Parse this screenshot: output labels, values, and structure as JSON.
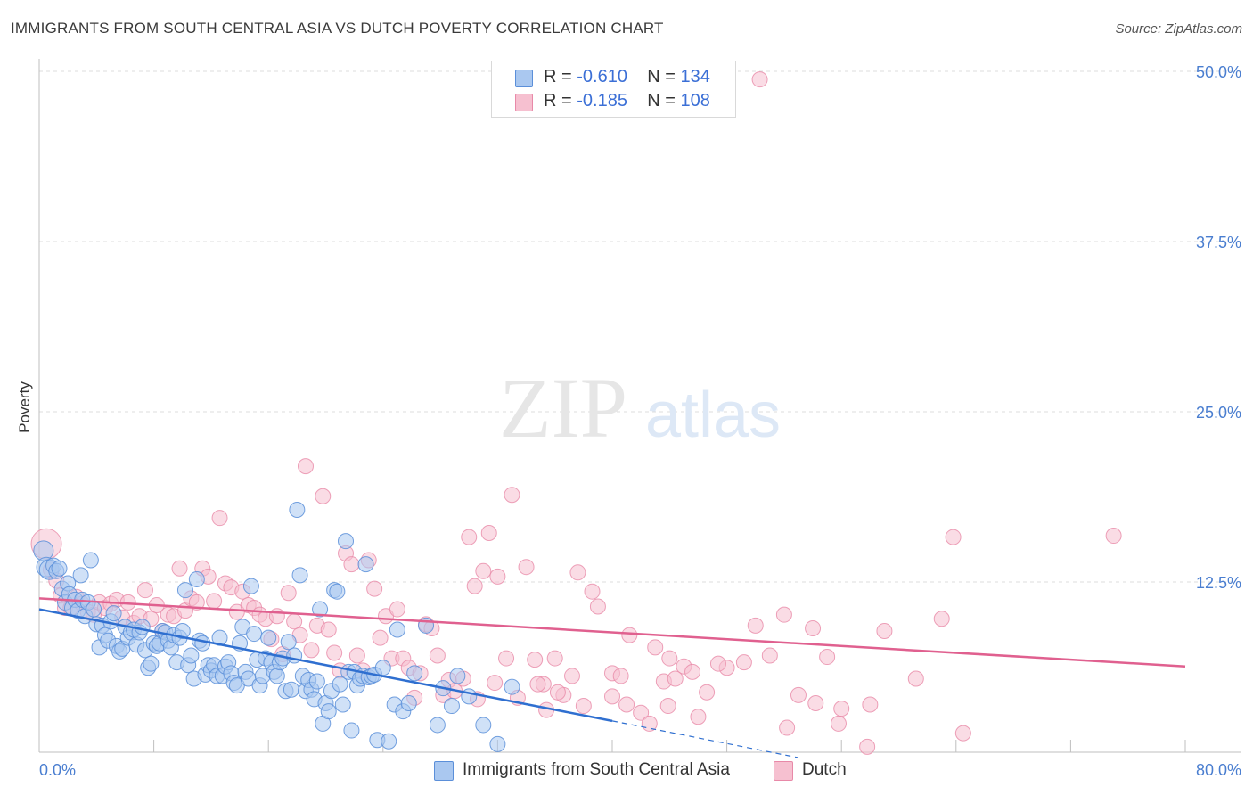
{
  "title": "IMMIGRANTS FROM SOUTH CENTRAL ASIA VS DUTCH POVERTY CORRELATION CHART",
  "source": "Source: ZipAtlas.com",
  "watermark": {
    "zip": "ZIP",
    "atlas": "atlas"
  },
  "legend": {
    "series1": {
      "r_label": "R =",
      "r_value": "-0.610",
      "n_label": "N =",
      "n_value": "134"
    },
    "series2": {
      "r_label": "R =",
      "r_value": "-0.185",
      "n_label": "N =",
      "n_value": "108"
    }
  },
  "colors": {
    "blue_fill": "#aac8f0",
    "blue_stroke": "#5b8fd9",
    "blue_line": "#2f6fd0",
    "pink_fill": "#f6c0d0",
    "pink_stroke": "#e889a8",
    "pink_line": "#e0608f",
    "tick_text": "#4a7ed0"
  },
  "chart_data": {
    "type": "scatter",
    "title": "IMMIGRANTS FROM SOUTH CENTRAL ASIA VS DUTCH POVERTY CORRELATION CHART",
    "xlabel": "",
    "ylabel": "Poverty",
    "xlim": [
      0,
      80
    ],
    "ylim": [
      0,
      50
    ],
    "x_tick_labels": [
      "0.0%",
      "80.0%"
    ],
    "y_ticks": [
      12.5,
      25.0,
      37.5,
      50.0
    ],
    "y_tick_labels": [
      "12.5%",
      "25.0%",
      "37.5%",
      "50.0%"
    ],
    "grid": "horizontal dashed",
    "legend_position": "top-center",
    "series": [
      {
        "name": "Immigrants from South Central Asia",
        "trend": {
          "x": [
            0,
            40
          ],
          "y": [
            10.5,
            2.3
          ],
          "dashed_to": [
            53,
            -0.4
          ]
        },
        "points": [
          [
            0.3,
            14.8
          ],
          [
            0.5,
            13.6
          ],
          [
            0.7,
            13.4
          ],
          [
            1.0,
            13.7
          ],
          [
            1.2,
            13.3
          ],
          [
            1.4,
            13.5
          ],
          [
            1.6,
            12.0
          ],
          [
            1.8,
            11.0
          ],
          [
            2.0,
            12.4
          ],
          [
            2.1,
            11.6
          ],
          [
            2.3,
            10.6
          ],
          [
            2.5,
            11.2
          ],
          [
            2.7,
            10.4
          ],
          [
            2.9,
            13.0
          ],
          [
            3.0,
            11.2
          ],
          [
            3.2,
            10.0
          ],
          [
            3.4,
            11.0
          ],
          [
            3.6,
            14.1
          ],
          [
            3.8,
            10.5
          ],
          [
            4.0,
            9.4
          ],
          [
            4.2,
            7.7
          ],
          [
            4.4,
            9.3
          ],
          [
            4.6,
            8.6
          ],
          [
            4.8,
            8.2
          ],
          [
            5.0,
            9.6
          ],
          [
            5.2,
            10.2
          ],
          [
            5.4,
            7.8
          ],
          [
            5.6,
            7.4
          ],
          [
            5.8,
            7.6
          ],
          [
            6.0,
            9.2
          ],
          [
            6.2,
            8.4
          ],
          [
            6.4,
            8.8
          ],
          [
            6.6,
            9.0
          ],
          [
            6.8,
            7.9
          ],
          [
            7.0,
            8.8
          ],
          [
            7.2,
            9.2
          ],
          [
            7.4,
            7.5
          ],
          [
            7.6,
            6.2
          ],
          [
            7.8,
            6.5
          ],
          [
            8.0,
            8.0
          ],
          [
            8.2,
            7.8
          ],
          [
            8.4,
            8.0
          ],
          [
            8.6,
            8.9
          ],
          [
            8.8,
            8.8
          ],
          [
            9.0,
            8.2
          ],
          [
            9.2,
            7.7
          ],
          [
            9.4,
            8.6
          ],
          [
            9.6,
            6.6
          ],
          [
            9.8,
            8.4
          ],
          [
            10.0,
            8.9
          ],
          [
            10.2,
            11.9
          ],
          [
            10.4,
            6.4
          ],
          [
            10.6,
            7.1
          ],
          [
            10.8,
            5.4
          ],
          [
            11.0,
            12.7
          ],
          [
            11.2,
            8.2
          ],
          [
            11.4,
            8.0
          ],
          [
            11.6,
            5.7
          ],
          [
            11.8,
            6.4
          ],
          [
            12.0,
            6.0
          ],
          [
            12.2,
            6.4
          ],
          [
            12.4,
            5.6
          ],
          [
            12.6,
            8.4
          ],
          [
            12.8,
            5.6
          ],
          [
            13.0,
            6.3
          ],
          [
            13.2,
            6.6
          ],
          [
            13.4,
            5.8
          ],
          [
            13.6,
            5.1
          ],
          [
            13.8,
            4.9
          ],
          [
            14.0,
            8.0
          ],
          [
            14.2,
            9.2
          ],
          [
            14.4,
            5.9
          ],
          [
            14.6,
            5.4
          ],
          [
            14.8,
            12.2
          ],
          [
            15.0,
            8.7
          ],
          [
            15.2,
            6.8
          ],
          [
            15.4,
            4.9
          ],
          [
            15.6,
            5.6
          ],
          [
            15.8,
            6.9
          ],
          [
            16.0,
            8.4
          ],
          [
            16.2,
            6.6
          ],
          [
            16.4,
            5.9
          ],
          [
            16.6,
            5.6
          ],
          [
            16.8,
            6.6
          ],
          [
            17.0,
            6.9
          ],
          [
            17.2,
            4.5
          ],
          [
            17.4,
            8.1
          ],
          [
            17.6,
            4.6
          ],
          [
            17.8,
            7.1
          ],
          [
            18.0,
            17.8
          ],
          [
            18.2,
            13.0
          ],
          [
            18.4,
            5.6
          ],
          [
            18.6,
            4.5
          ],
          [
            18.8,
            5.3
          ],
          [
            19.0,
            4.6
          ],
          [
            19.2,
            3.9
          ],
          [
            19.4,
            5.2
          ],
          [
            19.6,
            10.5
          ],
          [
            19.8,
            2.1
          ],
          [
            20.0,
            3.6
          ],
          [
            20.2,
            3.0
          ],
          [
            20.4,
            4.5
          ],
          [
            20.6,
            11.9
          ],
          [
            20.8,
            11.8
          ],
          [
            21.0,
            5.0
          ],
          [
            21.2,
            3.5
          ],
          [
            21.4,
            15.5
          ],
          [
            21.6,
            5.9
          ],
          [
            21.8,
            1.6
          ],
          [
            22.0,
            5.9
          ],
          [
            22.2,
            4.9
          ],
          [
            22.4,
            5.4
          ],
          [
            22.6,
            5.6
          ],
          [
            22.8,
            13.8
          ],
          [
            23.0,
            5.5
          ],
          [
            23.2,
            5.6
          ],
          [
            23.4,
            5.7
          ],
          [
            23.6,
            0.9
          ],
          [
            24.0,
            6.2
          ],
          [
            24.4,
            0.8
          ],
          [
            24.8,
            3.5
          ],
          [
            25.0,
            9.0
          ],
          [
            25.4,
            3.0
          ],
          [
            25.8,
            3.6
          ],
          [
            26.2,
            5.8
          ],
          [
            27.0,
            9.3
          ],
          [
            27.8,
            2.0
          ],
          [
            28.2,
            4.7
          ],
          [
            28.8,
            3.4
          ],
          [
            29.2,
            5.6
          ],
          [
            30.0,
            4.1
          ],
          [
            31.0,
            2.0
          ],
          [
            32.0,
            0.6
          ],
          [
            33.0,
            4.8
          ]
        ]
      },
      {
        "name": "Dutch",
        "trend": {
          "x": [
            0,
            80
          ],
          "y": [
            11.3,
            6.3
          ]
        },
        "points": [
          [
            0.5,
            15.3
          ],
          [
            0.8,
            13.4
          ],
          [
            1.2,
            12.6
          ],
          [
            1.5,
            11.5
          ],
          [
            1.8,
            10.6
          ],
          [
            2.2,
            10.6
          ],
          [
            2.6,
            11.4
          ],
          [
            3.0,
            10.9
          ],
          [
            3.4,
            10.3
          ],
          [
            3.8,
            10.1
          ],
          [
            4.2,
            11.0
          ],
          [
            4.6,
            10.6
          ],
          [
            5.0,
            10.9
          ],
          [
            5.4,
            11.2
          ],
          [
            5.8,
            9.9
          ],
          [
            6.2,
            11.0
          ],
          [
            6.6,
            9.5
          ],
          [
            7.0,
            10.0
          ],
          [
            7.4,
            11.9
          ],
          [
            7.8,
            9.8
          ],
          [
            8.2,
            10.8
          ],
          [
            8.6,
            8.9
          ],
          [
            9.0,
            10.1
          ],
          [
            9.4,
            10.0
          ],
          [
            9.8,
            13.5
          ],
          [
            10.2,
            10.4
          ],
          [
            10.6,
            11.3
          ],
          [
            11.0,
            11.0
          ],
          [
            11.4,
            13.5
          ],
          [
            11.8,
            12.9
          ],
          [
            12.2,
            11.1
          ],
          [
            12.6,
            17.2
          ],
          [
            13.0,
            12.4
          ],
          [
            13.4,
            12.1
          ],
          [
            13.8,
            10.3
          ],
          [
            14.2,
            11.8
          ],
          [
            14.6,
            10.8
          ],
          [
            15.0,
            10.6
          ],
          [
            15.4,
            10.1
          ],
          [
            15.8,
            9.8
          ],
          [
            16.2,
            8.3
          ],
          [
            16.6,
            10.0
          ],
          [
            17.0,
            7.2
          ],
          [
            17.4,
            11.7
          ],
          [
            17.8,
            9.6
          ],
          [
            18.2,
            8.6
          ],
          [
            18.6,
            21.0
          ],
          [
            19.0,
            7.5
          ],
          [
            19.4,
            9.3
          ],
          [
            19.8,
            18.8
          ],
          [
            20.2,
            9.0
          ],
          [
            20.6,
            7.3
          ],
          [
            21.0,
            6.0
          ],
          [
            21.4,
            14.6
          ],
          [
            21.8,
            13.8
          ],
          [
            22.2,
            7.1
          ],
          [
            22.6,
            6.0
          ],
          [
            23.0,
            14.1
          ],
          [
            23.4,
            12.0
          ],
          [
            23.8,
            8.4
          ],
          [
            24.2,
            10.0
          ],
          [
            24.6,
            6.9
          ],
          [
            25.0,
            10.5
          ],
          [
            25.4,
            6.9
          ],
          [
            25.8,
            6.2
          ],
          [
            26.2,
            4.0
          ],
          [
            26.6,
            5.8
          ],
          [
            27.0,
            9.4
          ],
          [
            27.4,
            9.1
          ],
          [
            27.8,
            7.1
          ],
          [
            28.2,
            4.2
          ],
          [
            28.6,
            5.3
          ],
          [
            29.0,
            4.5
          ],
          [
            30.0,
            15.8
          ],
          [
            30.4,
            12.2
          ],
          [
            31.0,
            13.3
          ],
          [
            31.4,
            16.1
          ],
          [
            32.0,
            12.9
          ],
          [
            33.0,
            18.9
          ],
          [
            34.0,
            13.6
          ],
          [
            34.6,
            6.8
          ],
          [
            35.2,
            5.0
          ],
          [
            36.0,
            6.9
          ],
          [
            36.6,
            4.2
          ],
          [
            37.6,
            13.2
          ],
          [
            38.6,
            11.8
          ],
          [
            39.0,
            10.7
          ],
          [
            40.0,
            5.8
          ],
          [
            41.0,
            3.5
          ],
          [
            42.0,
            2.9
          ],
          [
            43.0,
            7.7
          ],
          [
            43.6,
            5.2
          ],
          [
            44.0,
            6.9
          ],
          [
            45.0,
            6.3
          ],
          [
            45.6,
            5.9
          ],
          [
            46.0,
            2.6
          ],
          [
            46.6,
            4.4
          ],
          [
            48.0,
            6.2
          ],
          [
            50.0,
            9.3
          ],
          [
            51.0,
            7.1
          ],
          [
            52.0,
            10.1
          ],
          [
            53.0,
            4.2
          ],
          [
            54.0,
            9.1
          ],
          [
            55.0,
            7.0
          ],
          [
            56.0,
            3.2
          ],
          [
            59.0,
            8.9
          ],
          [
            63.0,
            9.8
          ],
          [
            75.0,
            15.9
          ]
        ],
        "outliers": [
          [
            50.3,
            49.4
          ],
          [
            63.8,
            15.8
          ],
          [
            61.2,
            5.4
          ],
          [
            64.5,
            1.4
          ],
          [
            57.8,
            0.4
          ],
          [
            58.0,
            3.5
          ],
          [
            55.8,
            2.1
          ],
          [
            54.2,
            3.6
          ],
          [
            52.2,
            1.8
          ],
          [
            49.2,
            6.6
          ],
          [
            47.4,
            6.5
          ],
          [
            44.4,
            5.4
          ],
          [
            43.9,
            3.4
          ],
          [
            42.6,
            2.1
          ],
          [
            41.2,
            8.6
          ],
          [
            40.6,
            5.6
          ],
          [
            40.0,
            4.1
          ],
          [
            38.0,
            3.4
          ],
          [
            37.2,
            5.6
          ],
          [
            36.2,
            4.4
          ],
          [
            35.4,
            3.1
          ],
          [
            34.8,
            5.0
          ],
          [
            33.4,
            4.0
          ],
          [
            32.6,
            6.9
          ],
          [
            31.8,
            5.1
          ],
          [
            30.6,
            3.9
          ],
          [
            29.6,
            5.4
          ]
        ]
      }
    ]
  },
  "y_axis_label": "Poverty",
  "x_axis": {
    "min_label": "0.0%",
    "max_label": "80.0%"
  },
  "bottom_legend": {
    "series1": "Immigrants from South Central Asia",
    "series2": "Dutch"
  }
}
